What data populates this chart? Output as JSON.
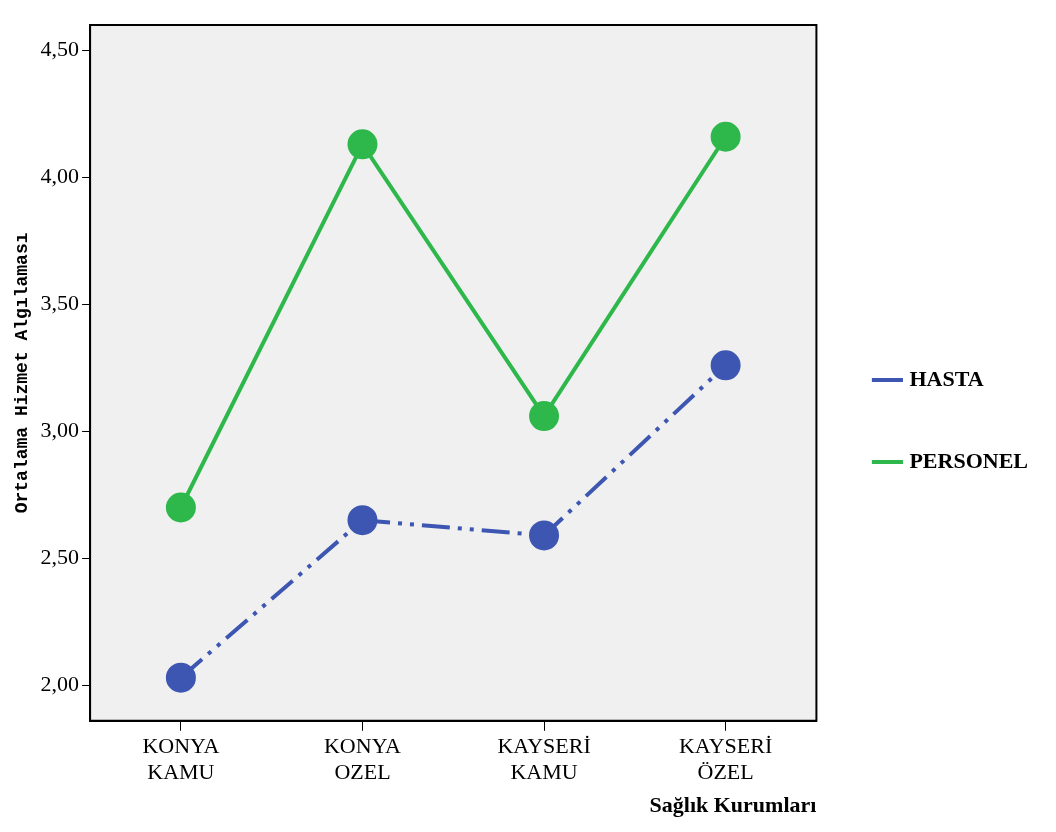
{
  "chart_data": {
    "type": "line",
    "ylabel": "Ortalama Hizmet Algılaması",
    "xlabel": "Sağlık Kurumları",
    "categories": [
      "KONYA KAMU",
      "KONYA OZEL",
      "KAYSERİ KAMU",
      "KAYSERİ ÖZEL"
    ],
    "series": [
      {
        "name": "HASTA",
        "color": "#3d56b2",
        "values": [
          2.03,
          2.65,
          2.59,
          3.26
        ],
        "line_style": "dashed"
      },
      {
        "name": "PERSONEL",
        "color": "#2eb84b",
        "values": [
          2.7,
          4.13,
          3.06,
          4.16
        ],
        "line_style": "solid"
      }
    ],
    "ylim": [
      1.86,
      4.6
    ],
    "yticks": [
      {
        "value": 2,
        "label": "2,00"
      },
      {
        "value": 2.5,
        "label": "2,50"
      },
      {
        "value": 3,
        "label": "3,00"
      },
      {
        "value": 3.5,
        "label": "3,50"
      },
      {
        "value": 4,
        "label": "4,00"
      },
      {
        "value": 4.5,
        "label": "4,50"
      }
    ],
    "grid": false,
    "legend": "right",
    "marker": "circle"
  }
}
